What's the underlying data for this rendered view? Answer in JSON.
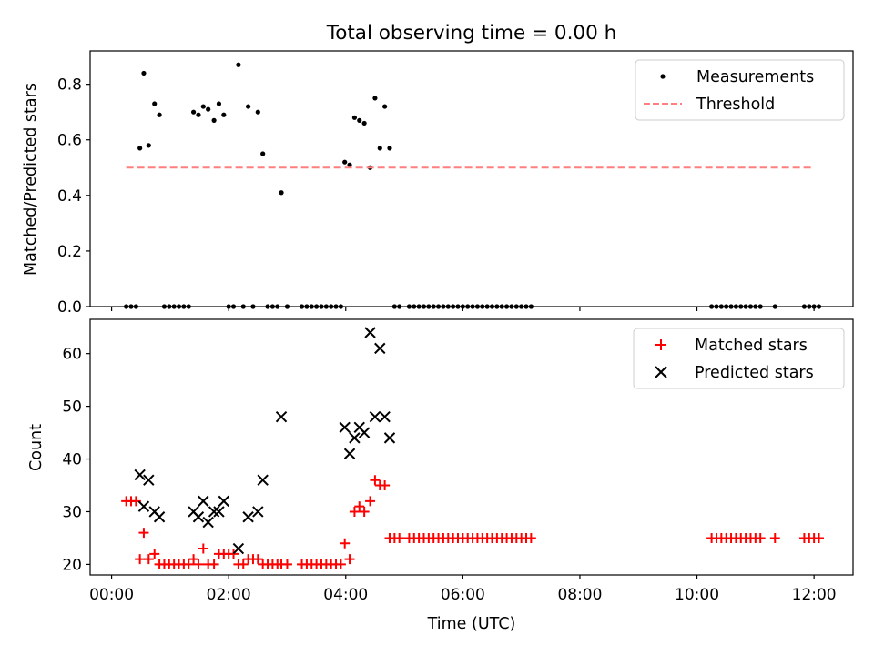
{
  "chart_data": [
    {
      "type": "scatter",
      "title": "Total observing time = 0.00 h",
      "ylabel": "Matched/Predicted stars",
      "xlabel": "",
      "xlim": [
        "-00:22",
        "12:40"
      ],
      "ylim": [
        0,
        0.92
      ],
      "yticks": [
        0.0,
        0.2,
        0.4,
        0.6,
        0.8
      ],
      "ytick_labels": [
        "0.0",
        "0.2",
        "0.4",
        "0.6",
        "0.8"
      ],
      "xticks": [
        "00:00",
        "02:00",
        "04:00",
        "06:00",
        "08:00",
        "10:00",
        "12:00"
      ],
      "x_tick_labels_shown": false,
      "grid": false,
      "legend": "top-right",
      "series": [
        {
          "name": "Measurements",
          "marker": "dot",
          "color": "#000000",
          "points": [
            [
              "00:15",
              0.0
            ],
            [
              "00:20",
              0.0
            ],
            [
              "00:25",
              0.0
            ],
            [
              "00:29",
              0.57
            ],
            [
              "00:33",
              0.84
            ],
            [
              "00:38",
              0.58
            ],
            [
              "00:44",
              0.73
            ],
            [
              "00:49",
              0.69
            ],
            [
              "00:54",
              0.0
            ],
            [
              "00:59",
              0.0
            ],
            [
              "01:04",
              0.0
            ],
            [
              "01:09",
              0.0
            ],
            [
              "01:14",
              0.0
            ],
            [
              "01:19",
              0.0
            ],
            [
              "01:24",
              0.7
            ],
            [
              "01:29",
              0.69
            ],
            [
              "01:34",
              0.72
            ],
            [
              "01:39",
              0.71
            ],
            [
              "01:45",
              0.67
            ],
            [
              "01:50",
              0.73
            ],
            [
              "01:55",
              0.69
            ],
            [
              "02:00",
              0.0
            ],
            [
              "02:05",
              0.0
            ],
            [
              "02:10",
              0.87
            ],
            [
              "02:15",
              0.0
            ],
            [
              "02:20",
              0.72
            ],
            [
              "02:25",
              0.0
            ],
            [
              "02:30",
              0.7
            ],
            [
              "02:35",
              0.55
            ],
            [
              "02:40",
              0.0
            ],
            [
              "02:45",
              0.0
            ],
            [
              "02:50",
              0.0
            ],
            [
              "02:54",
              0.41
            ],
            [
              "03:00",
              0.0
            ],
            [
              "03:15",
              0.0
            ],
            [
              "03:20",
              0.0
            ],
            [
              "03:25",
              0.0
            ],
            [
              "03:30",
              0.0
            ],
            [
              "03:35",
              0.0
            ],
            [
              "03:40",
              0.0
            ],
            [
              "03:45",
              0.0
            ],
            [
              "03:50",
              0.0
            ],
            [
              "03:55",
              0.0
            ],
            [
              "03:59",
              0.52
            ],
            [
              "04:04",
              0.51
            ],
            [
              "04:09",
              0.68
            ],
            [
              "04:14",
              0.67
            ],
            [
              "04:19",
              0.66
            ],
            [
              "04:25",
              0.5
            ],
            [
              "04:30",
              0.75
            ],
            [
              "04:35",
              0.57
            ],
            [
              "04:40",
              0.72
            ],
            [
              "04:45",
              0.57
            ],
            [
              "04:50",
              0.0
            ],
            [
              "04:55",
              0.0
            ],
            [
              "05:05",
              0.0
            ],
            [
              "05:10",
              0.0
            ],
            [
              "05:15",
              0.0
            ],
            [
              "05:20",
              0.0
            ],
            [
              "05:25",
              0.0
            ],
            [
              "05:30",
              0.0
            ],
            [
              "05:35",
              0.0
            ],
            [
              "05:40",
              0.0
            ],
            [
              "05:45",
              0.0
            ],
            [
              "05:50",
              0.0
            ],
            [
              "05:55",
              0.0
            ],
            [
              "06:00",
              0.0
            ],
            [
              "06:05",
              0.0
            ],
            [
              "06:10",
              0.0
            ],
            [
              "06:15",
              0.0
            ],
            [
              "06:20",
              0.0
            ],
            [
              "06:25",
              0.0
            ],
            [
              "06:30",
              0.0
            ],
            [
              "06:35",
              0.0
            ],
            [
              "06:40",
              0.0
            ],
            [
              "06:45",
              0.0
            ],
            [
              "06:50",
              0.0
            ],
            [
              "06:55",
              0.0
            ],
            [
              "07:00",
              0.0
            ],
            [
              "07:05",
              0.0
            ],
            [
              "07:10",
              0.0
            ],
            [
              "10:15",
              0.0
            ],
            [
              "10:20",
              0.0
            ],
            [
              "10:25",
              0.0
            ],
            [
              "10:30",
              0.0
            ],
            [
              "10:35",
              0.0
            ],
            [
              "10:40",
              0.0
            ],
            [
              "10:45",
              0.0
            ],
            [
              "10:50",
              0.0
            ],
            [
              "10:55",
              0.0
            ],
            [
              "11:00",
              0.0
            ],
            [
              "11:05",
              0.0
            ],
            [
              "11:20",
              0.0
            ],
            [
              "11:50",
              0.0
            ],
            [
              "11:55",
              0.0
            ],
            [
              "12:00",
              0.0
            ],
            [
              "12:05",
              0.0
            ]
          ]
        },
        {
          "name": "Threshold",
          "marker": "dashed-line",
          "color": "#ff7f7f",
          "points": [
            [
              "00:15",
              0.5
            ],
            [
              "12:00",
              0.5
            ]
          ]
        }
      ]
    },
    {
      "type": "scatter",
      "title": "",
      "xlabel": "Time (UTC)",
      "ylabel": "Count",
      "xlim": [
        "-00:22",
        "12:40"
      ],
      "ylim": [
        18,
        66.5
      ],
      "yticks": [
        20,
        30,
        40,
        50,
        60
      ],
      "ytick_labels": [
        "20",
        "30",
        "40",
        "50",
        "60"
      ],
      "xticks": [
        "00:00",
        "02:00",
        "04:00",
        "06:00",
        "08:00",
        "10:00",
        "12:00"
      ],
      "xtick_labels": [
        "00:00",
        "02:00",
        "04:00",
        "06:00",
        "08:00",
        "10:00",
        "12:00"
      ],
      "grid": false,
      "legend": "top-right",
      "series": [
        {
          "name": "Matched stars",
          "marker": "plus",
          "color": "#ff0000",
          "points": [
            [
              "00:15",
              32
            ],
            [
              "00:20",
              32
            ],
            [
              "00:25",
              32
            ],
            [
              "00:29",
              21
            ],
            [
              "00:33",
              26
            ],
            [
              "00:38",
              21
            ],
            [
              "00:44",
              22
            ],
            [
              "00:49",
              20
            ],
            [
              "00:54",
              20
            ],
            [
              "00:59",
              20
            ],
            [
              "01:04",
              20
            ],
            [
              "01:09",
              20
            ],
            [
              "01:14",
              20
            ],
            [
              "01:19",
              20
            ],
            [
              "01:24",
              21
            ],
            [
              "01:29",
              20
            ],
            [
              "01:34",
              23
            ],
            [
              "01:39",
              20
            ],
            [
              "01:45",
              20
            ],
            [
              "01:50",
              22
            ],
            [
              "01:55",
              22
            ],
            [
              "02:00",
              22
            ],
            [
              "02:05",
              22
            ],
            [
              "02:10",
              20
            ],
            [
              "02:15",
              20
            ],
            [
              "02:20",
              21
            ],
            [
              "02:25",
              21
            ],
            [
              "02:30",
              21
            ],
            [
              "02:35",
              20
            ],
            [
              "02:40",
              20
            ],
            [
              "02:45",
              20
            ],
            [
              "02:50",
              20
            ],
            [
              "02:54",
              20
            ],
            [
              "03:00",
              20
            ],
            [
              "03:15",
              20
            ],
            [
              "03:20",
              20
            ],
            [
              "03:25",
              20
            ],
            [
              "03:30",
              20
            ],
            [
              "03:35",
              20
            ],
            [
              "03:40",
              20
            ],
            [
              "03:45",
              20
            ],
            [
              "03:50",
              20
            ],
            [
              "03:55",
              20
            ],
            [
              "03:59",
              24
            ],
            [
              "04:04",
              21
            ],
            [
              "04:09",
              30
            ],
            [
              "04:14",
              31
            ],
            [
              "04:19",
              30
            ],
            [
              "04:25",
              32
            ],
            [
              "04:30",
              36
            ],
            [
              "04:35",
              35
            ],
            [
              "04:40",
              35
            ],
            [
              "04:45",
              25
            ],
            [
              "04:50",
              25
            ],
            [
              "04:55",
              25
            ],
            [
              "05:05",
              25
            ],
            [
              "05:10",
              25
            ],
            [
              "05:15",
              25
            ],
            [
              "05:20",
              25
            ],
            [
              "05:25",
              25
            ],
            [
              "05:30",
              25
            ],
            [
              "05:35",
              25
            ],
            [
              "05:40",
              25
            ],
            [
              "05:45",
              25
            ],
            [
              "05:50",
              25
            ],
            [
              "05:55",
              25
            ],
            [
              "06:00",
              25
            ],
            [
              "06:05",
              25
            ],
            [
              "06:10",
              25
            ],
            [
              "06:15",
              25
            ],
            [
              "06:20",
              25
            ],
            [
              "06:25",
              25
            ],
            [
              "06:30",
              25
            ],
            [
              "06:35",
              25
            ],
            [
              "06:40",
              25
            ],
            [
              "06:45",
              25
            ],
            [
              "06:50",
              25
            ],
            [
              "06:55",
              25
            ],
            [
              "07:00",
              25
            ],
            [
              "07:05",
              25
            ],
            [
              "07:10",
              25
            ],
            [
              "10:15",
              25
            ],
            [
              "10:20",
              25
            ],
            [
              "10:25",
              25
            ],
            [
              "10:30",
              25
            ],
            [
              "10:35",
              25
            ],
            [
              "10:40",
              25
            ],
            [
              "10:45",
              25
            ],
            [
              "10:50",
              25
            ],
            [
              "10:55",
              25
            ],
            [
              "11:00",
              25
            ],
            [
              "11:05",
              25
            ],
            [
              "11:20",
              25
            ],
            [
              "11:50",
              25
            ],
            [
              "11:55",
              25
            ],
            [
              "12:00",
              25
            ],
            [
              "12:05",
              25
            ]
          ]
        },
        {
          "name": "Predicted stars",
          "marker": "x",
          "color": "#000000",
          "points": [
            [
              "00:29",
              37
            ],
            [
              "00:33",
              31
            ],
            [
              "00:38",
              36
            ],
            [
              "00:44",
              30
            ],
            [
              "00:49",
              29
            ],
            [
              "01:24",
              30
            ],
            [
              "01:29",
              29
            ],
            [
              "01:34",
              32
            ],
            [
              "01:39",
              28
            ],
            [
              "01:45",
              30
            ],
            [
              "01:50",
              30
            ],
            [
              "01:55",
              32
            ],
            [
              "02:10",
              23
            ],
            [
              "02:20",
              29
            ],
            [
              "02:30",
              30
            ],
            [
              "02:35",
              36
            ],
            [
              "02:54",
              48
            ],
            [
              "03:59",
              46
            ],
            [
              "04:04",
              41
            ],
            [
              "04:09",
              44
            ],
            [
              "04:14",
              46
            ],
            [
              "04:19",
              45
            ],
            [
              "04:25",
              64
            ],
            [
              "04:30",
              48
            ],
            [
              "04:35",
              61
            ],
            [
              "04:40",
              48
            ],
            [
              "04:45",
              44
            ]
          ]
        }
      ]
    }
  ]
}
